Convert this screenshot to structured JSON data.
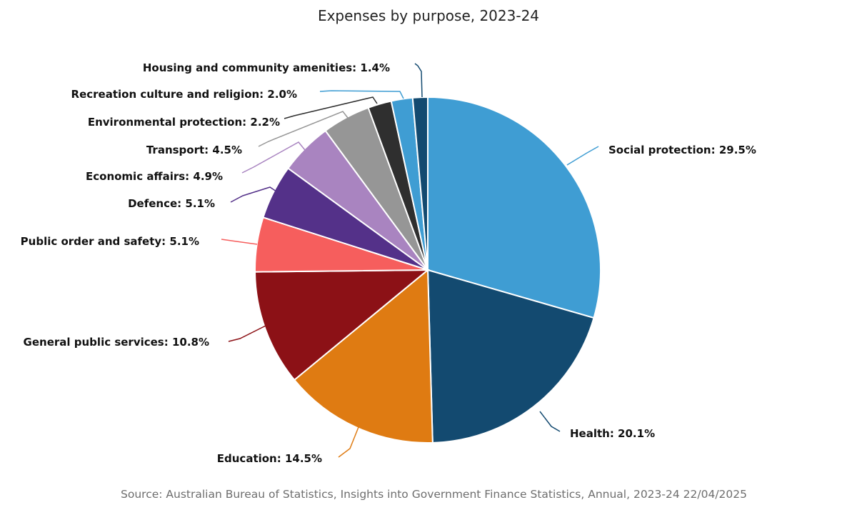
{
  "chart_data": {
    "type": "pie",
    "title": "Expenses by purpose, 2023-24",
    "source": "Source: Australian Bureau of Statistics, Insights into Government Finance Statistics, Annual, 2023-24 22/04/2025",
    "slices": [
      {
        "label": "Social protection: 29.5%",
        "value": 29.5,
        "color": "#3f9dd3"
      },
      {
        "label": "Health: 20.1%",
        "value": 20.1,
        "color": "#134a70"
      },
      {
        "label": "Education: 14.5%",
        "value": 14.5,
        "color": "#df7b12"
      },
      {
        "label": "General public services: 10.8%",
        "value": 10.8,
        "color": "#8c1116"
      },
      {
        "label": "Public order and safety: 5.1%",
        "value": 5.1,
        "color": "#f65e5d"
      },
      {
        "label": "Defence: 5.1%",
        "value": 5.1,
        "color": "#543189"
      },
      {
        "label": "Economic affairs: 4.9%",
        "value": 4.9,
        "color": "#a984c0"
      },
      {
        "label": "Transport: 4.5%",
        "value": 4.5,
        "color": "#969696"
      },
      {
        "label": "Environmental protection: 2.2%",
        "value": 2.2,
        "color": "#2f2f2f"
      },
      {
        "label": "Recreation culture and religion: 2.0%",
        "value": 2.0,
        "color": "#3f9dd3"
      },
      {
        "label": "Housing and community amenities: 1.4%",
        "value": 1.4,
        "color": "#134a70"
      }
    ]
  }
}
